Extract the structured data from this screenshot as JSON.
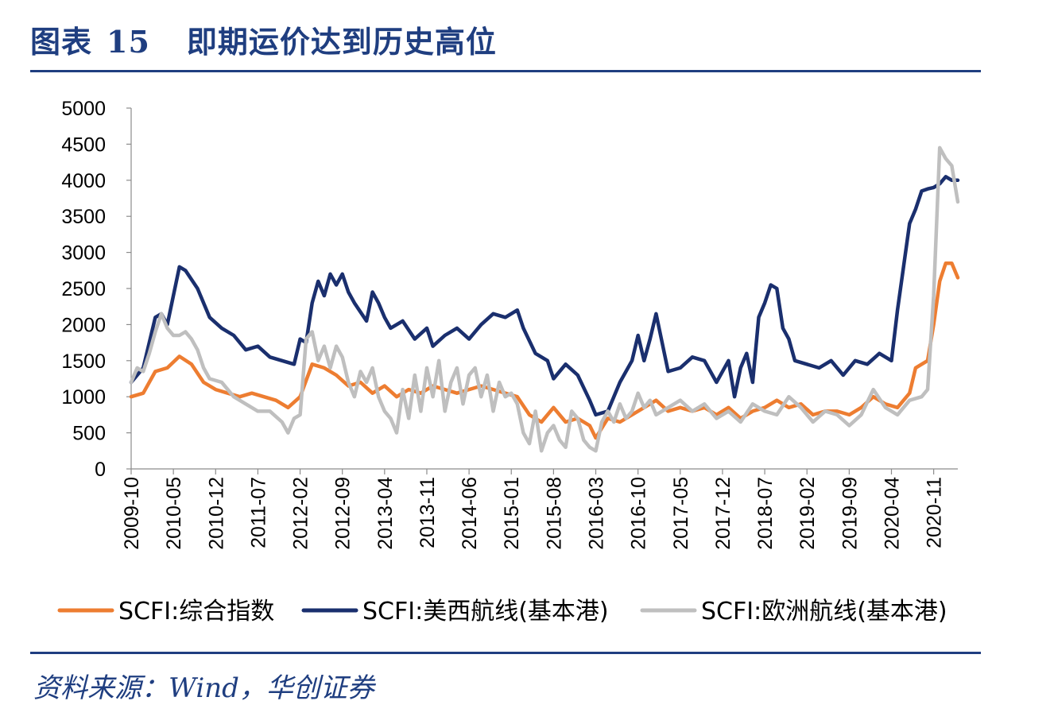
{
  "header": {
    "figure_label": "图表",
    "figure_number": "15",
    "title": "即期运价达到历史高位"
  },
  "footer": {
    "source": "资料来源：Wind，华创证券"
  },
  "colors": {
    "accent": "#1f3e80",
    "series": [
      "#ed7d31",
      "#1a2f6e",
      "#bfbfbf"
    ]
  },
  "chart_data": {
    "type": "line",
    "title": "",
    "xlabel": "",
    "ylabel": "",
    "ylim": [
      0,
      5000
    ],
    "yticks": [
      0,
      500,
      1000,
      1500,
      2000,
      2500,
      3000,
      3500,
      4000,
      4500,
      5000
    ],
    "xlim": [
      "2009-10",
      "2021-03"
    ],
    "xticks": [
      "2009-10",
      "2010-05",
      "2010-12",
      "2011-07",
      "2012-02",
      "2012-09",
      "2013-04",
      "2013-11",
      "2014-06",
      "2015-01",
      "2015-08",
      "2016-03",
      "2016-10",
      "2017-05",
      "2017-12",
      "2018-07",
      "2019-02",
      "2019-09",
      "2020-04",
      "2020-11"
    ],
    "grid": false,
    "legend": "bottom",
    "series": [
      {
        "name": "SCFI:综合指数",
        "points": [
          [
            "2009-10",
            1000
          ],
          [
            "2009-12",
            1050
          ],
          [
            "2010-02",
            1350
          ],
          [
            "2010-04",
            1400
          ],
          [
            "2010-06",
            1560
          ],
          [
            "2010-08",
            1450
          ],
          [
            "2010-10",
            1200
          ],
          [
            "2010-12",
            1100
          ],
          [
            "2011-02",
            1050
          ],
          [
            "2011-04",
            1000
          ],
          [
            "2011-06",
            1050
          ],
          [
            "2011-08",
            1000
          ],
          [
            "2011-10",
            950
          ],
          [
            "2011-12",
            850
          ],
          [
            "2012-02",
            1000
          ],
          [
            "2012-04",
            1450
          ],
          [
            "2012-06",
            1400
          ],
          [
            "2012-08",
            1300
          ],
          [
            "2012-10",
            1150
          ],
          [
            "2012-12",
            1200
          ],
          [
            "2013-02",
            1050
          ],
          [
            "2013-04",
            1150
          ],
          [
            "2013-06",
            1000
          ],
          [
            "2013-08",
            1100
          ],
          [
            "2013-10",
            1050
          ],
          [
            "2013-12",
            1150
          ],
          [
            "2014-02",
            1100
          ],
          [
            "2014-04",
            1050
          ],
          [
            "2014-06",
            1100
          ],
          [
            "2014-08",
            1150
          ],
          [
            "2014-10",
            1100
          ],
          [
            "2014-12",
            1050
          ],
          [
            "2015-02",
            1000
          ],
          [
            "2015-04",
            750
          ],
          [
            "2015-06",
            650
          ],
          [
            "2015-08",
            850
          ],
          [
            "2015-10",
            650
          ],
          [
            "2015-12",
            700
          ],
          [
            "2016-02",
            600
          ],
          [
            "2016-03",
            430
          ],
          [
            "2016-05",
            700
          ],
          [
            "2016-07",
            650
          ],
          [
            "2016-09",
            750
          ],
          [
            "2016-11",
            850
          ],
          [
            "2017-01",
            950
          ],
          [
            "2017-03",
            800
          ],
          [
            "2017-05",
            850
          ],
          [
            "2017-07",
            800
          ],
          [
            "2017-09",
            850
          ],
          [
            "2017-11",
            750
          ],
          [
            "2018-01",
            850
          ],
          [
            "2018-03",
            700
          ],
          [
            "2018-05",
            800
          ],
          [
            "2018-07",
            850
          ],
          [
            "2018-09",
            950
          ],
          [
            "2018-11",
            850
          ],
          [
            "2019-01",
            900
          ],
          [
            "2019-03",
            750
          ],
          [
            "2019-05",
            800
          ],
          [
            "2019-07",
            800
          ],
          [
            "2019-09",
            750
          ],
          [
            "2019-11",
            850
          ],
          [
            "2020-01",
            1000
          ],
          [
            "2020-03",
            900
          ],
          [
            "2020-05",
            850
          ],
          [
            "2020-07",
            1050
          ],
          [
            "2020-08",
            1400
          ],
          [
            "2020-09",
            1450
          ],
          [
            "2020-10",
            1500
          ],
          [
            "2020-11",
            2000
          ],
          [
            "2020-12",
            2600
          ],
          [
            "2021-01",
            2850
          ],
          [
            "2021-02",
            2850
          ],
          [
            "2021-03",
            2650
          ]
        ]
      },
      {
        "name": "SCFI:美西航线(基本港)",
        "points": [
          [
            "2009-10",
            1200
          ],
          [
            "2009-12",
            1400
          ],
          [
            "2010-02",
            2100
          ],
          [
            "2010-03",
            2150
          ],
          [
            "2010-04",
            2000
          ],
          [
            "2010-05",
            2400
          ],
          [
            "2010-06",
            2800
          ],
          [
            "2010-07",
            2750
          ],
          [
            "2010-09",
            2500
          ],
          [
            "2010-11",
            2100
          ],
          [
            "2011-01",
            1950
          ],
          [
            "2011-03",
            1850
          ],
          [
            "2011-05",
            1650
          ],
          [
            "2011-07",
            1700
          ],
          [
            "2011-09",
            1550
          ],
          [
            "2011-11",
            1500
          ],
          [
            "2012-01",
            1450
          ],
          [
            "2012-02",
            1800
          ],
          [
            "2012-03",
            1750
          ],
          [
            "2012-04",
            2300
          ],
          [
            "2012-05",
            2600
          ],
          [
            "2012-06",
            2400
          ],
          [
            "2012-07",
            2700
          ],
          [
            "2012-08",
            2550
          ],
          [
            "2012-09",
            2700
          ],
          [
            "2012-10",
            2450
          ],
          [
            "2012-11",
            2300
          ],
          [
            "2013-01",
            2050
          ],
          [
            "2013-02",
            2450
          ],
          [
            "2013-03",
            2300
          ],
          [
            "2013-04",
            2100
          ],
          [
            "2013-05",
            1950
          ],
          [
            "2013-07",
            2050
          ],
          [
            "2013-09",
            1800
          ],
          [
            "2013-11",
            1950
          ],
          [
            "2013-12",
            1700
          ],
          [
            "2014-02",
            1850
          ],
          [
            "2014-04",
            1950
          ],
          [
            "2014-06",
            1800
          ],
          [
            "2014-08",
            2000
          ],
          [
            "2014-10",
            2150
          ],
          [
            "2014-12",
            2100
          ],
          [
            "2015-02",
            2200
          ],
          [
            "2015-03",
            1950
          ],
          [
            "2015-05",
            1600
          ],
          [
            "2015-07",
            1500
          ],
          [
            "2015-08",
            1250
          ],
          [
            "2015-10",
            1450
          ],
          [
            "2015-12",
            1300
          ],
          [
            "2016-02",
            950
          ],
          [
            "2016-03",
            750
          ],
          [
            "2016-05",
            800
          ],
          [
            "2016-07",
            1200
          ],
          [
            "2016-09",
            1500
          ],
          [
            "2016-10",
            1850
          ],
          [
            "2016-11",
            1500
          ],
          [
            "2016-12",
            1800
          ],
          [
            "2017-01",
            2150
          ],
          [
            "2017-03",
            1350
          ],
          [
            "2017-05",
            1400
          ],
          [
            "2017-07",
            1550
          ],
          [
            "2017-09",
            1500
          ],
          [
            "2017-11",
            1200
          ],
          [
            "2018-01",
            1500
          ],
          [
            "2018-02",
            1000
          ],
          [
            "2018-03",
            1400
          ],
          [
            "2018-04",
            1600
          ],
          [
            "2018-05",
            1200
          ],
          [
            "2018-06",
            2100
          ],
          [
            "2018-07",
            2300
          ],
          [
            "2018-08",
            2550
          ],
          [
            "2018-09",
            2500
          ],
          [
            "2018-10",
            1950
          ],
          [
            "2018-11",
            1800
          ],
          [
            "2018-12",
            1500
          ],
          [
            "2019-02",
            1450
          ],
          [
            "2019-04",
            1400
          ],
          [
            "2019-06",
            1500
          ],
          [
            "2019-08",
            1300
          ],
          [
            "2019-10",
            1500
          ],
          [
            "2019-12",
            1450
          ],
          [
            "2020-02",
            1600
          ],
          [
            "2020-04",
            1500
          ],
          [
            "2020-05",
            2200
          ],
          [
            "2020-06",
            2800
          ],
          [
            "2020-07",
            3400
          ],
          [
            "2020-08",
            3600
          ],
          [
            "2020-09",
            3850
          ],
          [
            "2020-10",
            3880
          ],
          [
            "2020-11",
            3900
          ],
          [
            "2020-12",
            3950
          ],
          [
            "2021-01",
            4050
          ],
          [
            "2021-02",
            4000
          ],
          [
            "2021-03",
            4000
          ]
        ]
      },
      {
        "name": "SCFI:欧洲航线(基本港)",
        "points": [
          [
            "2009-10",
            1200
          ],
          [
            "2009-11",
            1400
          ],
          [
            "2009-12",
            1350
          ],
          [
            "2010-01",
            1600
          ],
          [
            "2010-02",
            1900
          ],
          [
            "2010-03",
            2150
          ],
          [
            "2010-04",
            1950
          ],
          [
            "2010-05",
            1850
          ],
          [
            "2010-06",
            1850
          ],
          [
            "2010-07",
            1900
          ],
          [
            "2010-08",
            1800
          ],
          [
            "2010-09",
            1650
          ],
          [
            "2010-10",
            1400
          ],
          [
            "2010-11",
            1250
          ],
          [
            "2011-01",
            1200
          ],
          [
            "2011-03",
            1000
          ],
          [
            "2011-05",
            900
          ],
          [
            "2011-07",
            800
          ],
          [
            "2011-09",
            800
          ],
          [
            "2011-11",
            650
          ],
          [
            "2011-12",
            500
          ],
          [
            "2012-01",
            700
          ],
          [
            "2012-02",
            750
          ],
          [
            "2012-03",
            1800
          ],
          [
            "2012-04",
            1900
          ],
          [
            "2012-05",
            1500
          ],
          [
            "2012-06",
            1700
          ],
          [
            "2012-07",
            1400
          ],
          [
            "2012-08",
            1700
          ],
          [
            "2012-09",
            1550
          ],
          [
            "2012-10",
            1200
          ],
          [
            "2012-11",
            1000
          ],
          [
            "2012-12",
            1350
          ],
          [
            "2013-01",
            1200
          ],
          [
            "2013-02",
            1400
          ],
          [
            "2013-03",
            1000
          ],
          [
            "2013-04",
            800
          ],
          [
            "2013-05",
            700
          ],
          [
            "2013-06",
            500
          ],
          [
            "2013-07",
            1100
          ],
          [
            "2013-08",
            700
          ],
          [
            "2013-09",
            1300
          ],
          [
            "2013-10",
            800
          ],
          [
            "2013-11",
            1400
          ],
          [
            "2013-12",
            1000
          ],
          [
            "2014-01",
            1500
          ],
          [
            "2014-02",
            800
          ],
          [
            "2014-03",
            1200
          ],
          [
            "2014-04",
            1400
          ],
          [
            "2014-05",
            900
          ],
          [
            "2014-06",
            1300
          ],
          [
            "2014-07",
            1400
          ],
          [
            "2014-08",
            1000
          ],
          [
            "2014-09",
            1300
          ],
          [
            "2014-10",
            800
          ],
          [
            "2014-11",
            1200
          ],
          [
            "2014-12",
            1000
          ],
          [
            "2015-01",
            1050
          ],
          [
            "2015-02",
            900
          ],
          [
            "2015-03",
            500
          ],
          [
            "2015-04",
            350
          ],
          [
            "2015-05",
            800
          ],
          [
            "2015-06",
            250
          ],
          [
            "2015-07",
            500
          ],
          [
            "2015-08",
            600
          ],
          [
            "2015-09",
            400
          ],
          [
            "2015-10",
            300
          ],
          [
            "2015-11",
            800
          ],
          [
            "2015-12",
            700
          ],
          [
            "2016-01",
            400
          ],
          [
            "2016-02",
            300
          ],
          [
            "2016-03",
            250
          ],
          [
            "2016-04",
            650
          ],
          [
            "2016-05",
            800
          ],
          [
            "2016-06",
            650
          ],
          [
            "2016-07",
            900
          ],
          [
            "2016-08",
            700
          ],
          [
            "2016-09",
            800
          ],
          [
            "2016-10",
            1050
          ],
          [
            "2016-11",
            850
          ],
          [
            "2016-12",
            950
          ],
          [
            "2017-01",
            750
          ],
          [
            "2017-03",
            850
          ],
          [
            "2017-05",
            950
          ],
          [
            "2017-07",
            800
          ],
          [
            "2017-09",
            900
          ],
          [
            "2017-11",
            700
          ],
          [
            "2018-01",
            800
          ],
          [
            "2018-03",
            650
          ],
          [
            "2018-05",
            900
          ],
          [
            "2018-07",
            800
          ],
          [
            "2018-09",
            750
          ],
          [
            "2018-11",
            1000
          ],
          [
            "2019-01",
            850
          ],
          [
            "2019-03",
            650
          ],
          [
            "2019-05",
            800
          ],
          [
            "2019-07",
            750
          ],
          [
            "2019-09",
            600
          ],
          [
            "2019-11",
            750
          ],
          [
            "2020-01",
            1100
          ],
          [
            "2020-03",
            850
          ],
          [
            "2020-05",
            750
          ],
          [
            "2020-07",
            950
          ],
          [
            "2020-09",
            1000
          ],
          [
            "2020-10",
            1100
          ],
          [
            "2020-11",
            2400
          ],
          [
            "2020-12",
            4450
          ],
          [
            "2021-01",
            4300
          ],
          [
            "2021-02",
            4200
          ],
          [
            "2021-03",
            3700
          ]
        ]
      }
    ]
  }
}
